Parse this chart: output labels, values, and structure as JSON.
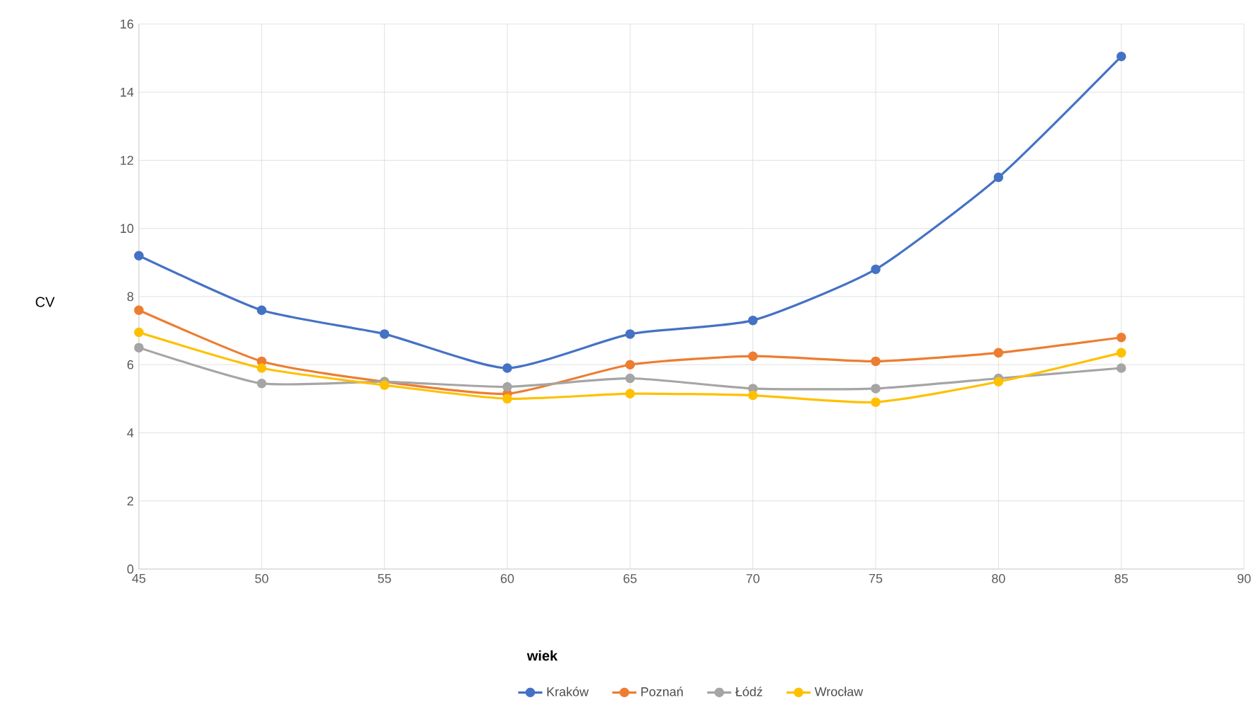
{
  "chart_data": {
    "type": "line",
    "xlabel": "wiek",
    "ylabel": "CV",
    "x": [
      45,
      50,
      55,
      60,
      65,
      70,
      75,
      80,
      85
    ],
    "series": [
      {
        "name": "Kraków",
        "color": "#4472c4",
        "values": [
          9.2,
          7.6,
          6.9,
          5.9,
          6.9,
          7.3,
          8.8,
          11.5,
          15.05
        ]
      },
      {
        "name": "Poznań",
        "color": "#ed7d31",
        "values": [
          7.6,
          6.1,
          5.5,
          5.15,
          6.0,
          6.25,
          6.1,
          6.35,
          6.8
        ]
      },
      {
        "name": "Łódź",
        "color": "#a5a5a5",
        "values": [
          6.5,
          5.45,
          5.5,
          5.35,
          5.6,
          5.3,
          5.3,
          5.6,
          5.9
        ]
      },
      {
        "name": "Wrocław",
        "color": "#ffc000",
        "values": [
          6.95,
          5.9,
          5.4,
          5.0,
          5.15,
          5.1,
          4.9,
          5.5,
          6.35
        ]
      }
    ],
    "xlim": [
      45,
      90
    ],
    "xticks": [
      45,
      50,
      55,
      60,
      65,
      70,
      75,
      80,
      85,
      90
    ],
    "ylim": [
      0,
      16
    ],
    "yticks": [
      0,
      2,
      4,
      6,
      8,
      10,
      12,
      14,
      16
    ],
    "grid": true,
    "legend": "bottom",
    "marker": "circle",
    "line_style": "solid"
  }
}
